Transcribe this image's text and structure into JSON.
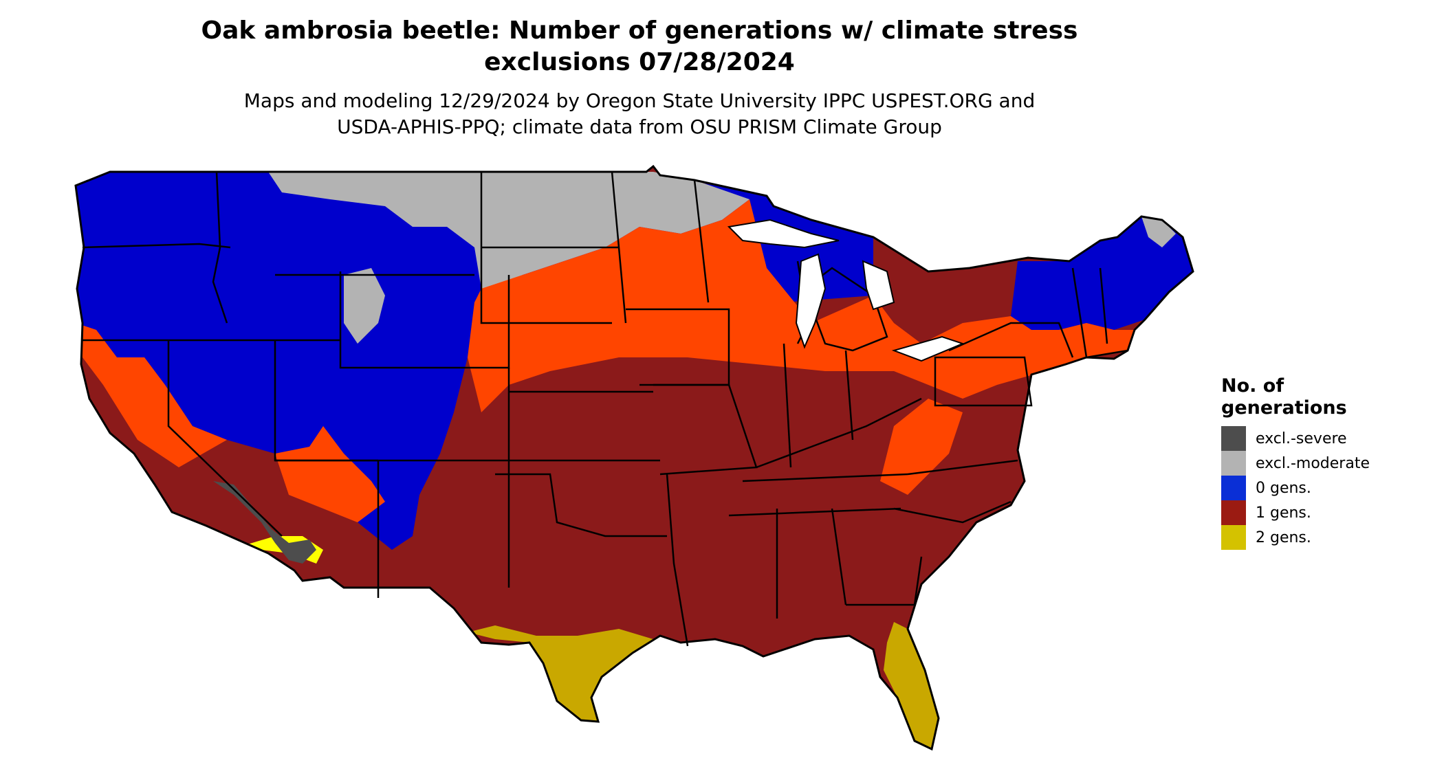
{
  "title_line1": "Oak ambrosia beetle: Number of generations w/ climate stress",
  "title_line2": "exclusions 07/28/2024",
  "subtitle_line1": "Maps and modeling 12/29/2024 by Oregon State University IPPC USPEST.ORG and",
  "subtitle_line2": "USDA-APHIS-PPQ; climate data from OSU PRISM Climate Group",
  "legend": {
    "title_line1": "No. of",
    "title_line2": "generations",
    "items": [
      {
        "label": "excl.-severe",
        "color": "#4d4d4d"
      },
      {
        "label": "excl.-moderate",
        "color": "#b3b3b3"
      },
      {
        "label": "0 gens.",
        "color": "#0a2fd6"
      },
      {
        "label": "1 gens.",
        "color": "#9b1b12"
      },
      {
        "label": "2 gens.",
        "color": "#d4c200"
      }
    ]
  },
  "colors": {
    "zero_gen_dark": "#0000cc",
    "one_gen": "#8b1a1a",
    "one_gen_partial": "#ff4500",
    "two_gen": "#c9a800",
    "two_gen_bright": "#ffff00",
    "excl_moderate": "#b3b3b3",
    "excl_severe": "#4d4d4d",
    "border": "#000000"
  }
}
